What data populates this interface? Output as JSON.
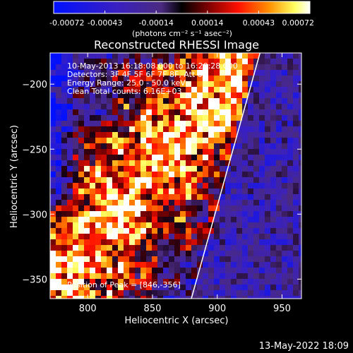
{
  "colorbar": {
    "ticks": [
      "-0.00072",
      "-0.00043",
      "-0.00014",
      "0.00014",
      "0.00043",
      "0.00072"
    ],
    "units": "(photons cm⁻² s⁻¹ asec⁻²)",
    "colors": [
      "#0000ff",
      "#3b1bb8",
      "#5a2a8a",
      "#000000",
      "#8b0000",
      "#ff0000",
      "#ff8c00",
      "#ffff66",
      "#ffffff"
    ]
  },
  "chart_data": {
    "type": "heatmap",
    "title": "Reconstructed RHESSI Image",
    "xlabel": "Heliocentric X (arcsec)",
    "ylabel": "Heliocentric Y (arcsec)",
    "xlim": [
      771,
      965
    ],
    "ylim": [
      -365,
      -176
    ],
    "xticks": [
      800,
      850,
      900,
      950
    ],
    "yticks": [
      -350,
      -300,
      -250,
      -200
    ],
    "color_range": [
      -0.00072,
      0.00072
    ],
    "limb_line": [
      [
        880,
        -365
      ],
      [
        933,
        -176
      ]
    ],
    "annotations": [
      "10-May-2013 16:18:08.000 to 16:20:28.000",
      "Detectors: 3F 4F 5F 6F 7F 8F, Att 0",
      "Energy Range: 25.0 - 50.0 keV",
      "Clean    Total counts: 6.16E+03"
    ],
    "peak_label": "Position of Peak = [846,-356]",
    "peak": [
      846,
      -356
    ]
  },
  "footer": {
    "timestamp": "13-May-2022 18:09"
  }
}
